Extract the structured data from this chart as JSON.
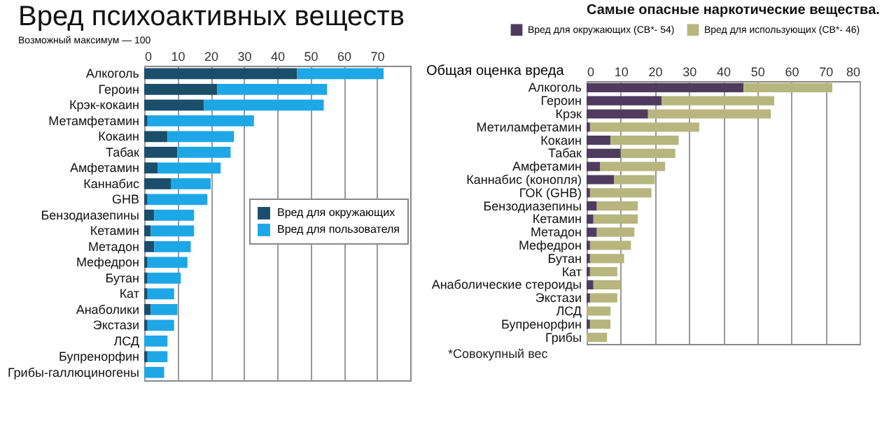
{
  "chart_data": [
    {
      "type": "bar",
      "orientation": "horizontal",
      "stacked": true,
      "title": "Вред психоактивных веществ",
      "subtitle": "Возможный максимум — 100",
      "categories": [
        "Алкоголь",
        "Героин",
        "Крэк-кокаин",
        "Метамфетамин",
        "Кокаин",
        "Табак",
        "Амфетамин",
        "Каннабис",
        "GHB",
        "Бензодиазепины",
        "Кетамин",
        "Метадон",
        "Мефедрон",
        "Бутан",
        "Кат",
        "Анаболики",
        "Экстази",
        "ЛСД",
        "Бупренорфин",
        "Грибы-галлюциногены"
      ],
      "series": [
        {
          "name": "Вред для окружающих",
          "color": "#1b4e6b",
          "values": [
            46,
            22,
            18,
            1,
            7,
            10,
            4,
            8,
            1,
            3,
            2,
            3,
            1,
            1,
            1,
            2,
            1,
            0,
            1,
            0
          ]
        },
        {
          "name": "Вред для пользователя",
          "color": "#1ea7e6",
          "values": [
            26,
            33,
            36,
            32,
            20,
            16,
            19,
            12,
            18,
            12,
            13,
            11,
            12,
            10,
            8,
            8,
            8,
            7,
            6,
            6
          ]
        }
      ],
      "xlim": [
        0,
        80
      ],
      "xticks": [
        0,
        10,
        20,
        30,
        40,
        50,
        60,
        70
      ],
      "grid": "x",
      "legend": "right"
    },
    {
      "type": "bar",
      "orientation": "horizontal",
      "stacked": true,
      "title": "Самые опасные наркотические вещества.",
      "ylabel": "Общая оценка вреда",
      "categories": [
        "Алкоголь",
        "Героин",
        "Крэк",
        "Метиламфетамин",
        "Кокаин",
        "Табак",
        "Амфетамин",
        "Каннабис (конопля)",
        "ГОК (GHB)",
        "Бензодиазепины",
        "Кетамин",
        "Метадон",
        "Мефедрон",
        "Бутан",
        "Кат",
        "Анаболические стероиды",
        "Экстази",
        "ЛСД",
        "Бупренорфин",
        "Грибы"
      ],
      "series": [
        {
          "name": "Вред для окружающих (СВ*- 54)",
          "color": "#4f3b5e",
          "values": [
            46,
            22,
            18,
            1,
            7,
            10,
            4,
            8,
            1,
            3,
            2,
            3,
            1,
            1,
            1,
            2,
            1,
            0,
            1,
            0
          ]
        },
        {
          "name": "Вред для использующих (СВ*- 46)",
          "color": "#b6b67e",
          "values": [
            26,
            33,
            36,
            32,
            20,
            16,
            19,
            12,
            18,
            12,
            13,
            11,
            12,
            10,
            8,
            8,
            8,
            7,
            6,
            6
          ]
        }
      ],
      "xlim": [
        0,
        80
      ],
      "xticks": [
        0,
        10,
        20,
        30,
        40,
        50,
        60,
        70,
        80
      ],
      "grid": "x",
      "legend": "top",
      "annotations": [
        "*Совокупный вес"
      ]
    }
  ]
}
